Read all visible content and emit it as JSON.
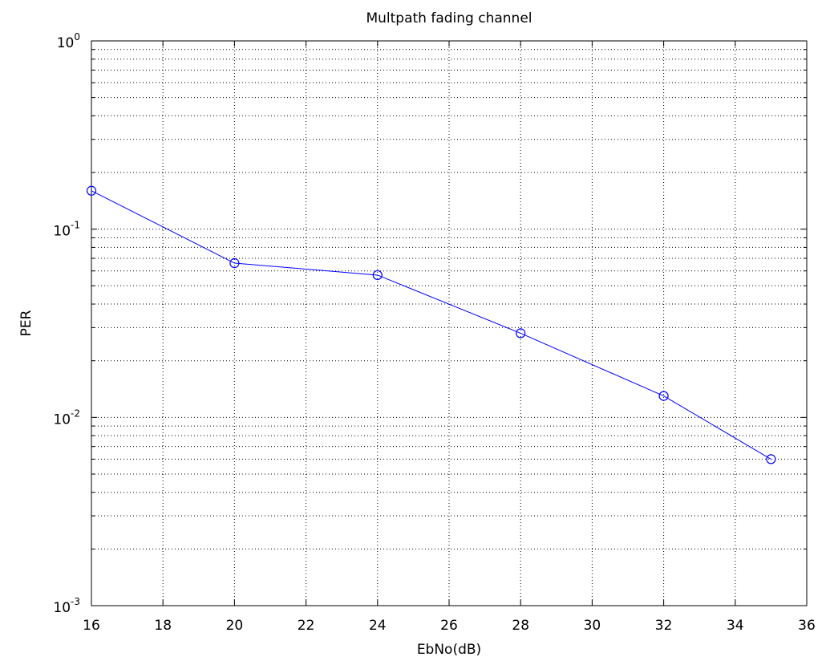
{
  "chart_data": {
    "type": "line",
    "title": "Multpath fading channel",
    "xlabel": "EbNo(dB)",
    "ylabel": "PER",
    "xlim": [
      16,
      36
    ],
    "ylim": [
      0.001,
      1
    ],
    "yscale": "log",
    "grid": true,
    "x_ticks": [
      "16",
      "18",
      "20",
      "22",
      "24",
      "26",
      "28",
      "30",
      "32",
      "34",
      "36"
    ],
    "y_ticks": [
      {
        "base": "10",
        "exp": "-3"
      },
      {
        "base": "10",
        "exp": "-2"
      },
      {
        "base": "10",
        "exp": "-1"
      },
      {
        "base": "10",
        "exp": "0"
      }
    ],
    "series": [
      {
        "color": "#0000ff",
        "marker": "circle",
        "x": [
          16,
          20,
          24,
          28,
          32,
          35
        ],
        "y": [
          0.16,
          0.066,
          0.057,
          0.028,
          0.013,
          0.006
        ]
      }
    ]
  }
}
